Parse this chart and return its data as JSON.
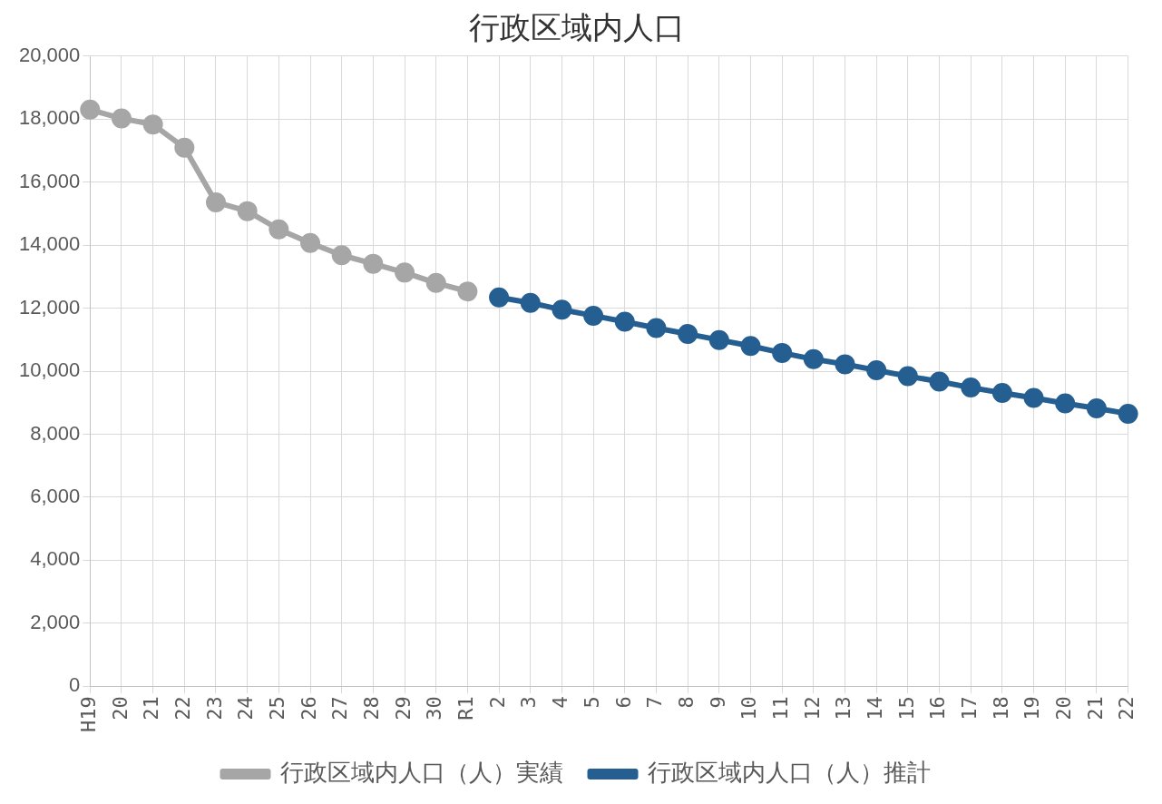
{
  "chart_data": {
    "type": "line",
    "title": "行政区域内人口",
    "categories": [
      "H19",
      "20",
      "21",
      "22",
      "23",
      "24",
      "25",
      "26",
      "27",
      "28",
      "29",
      "30",
      "R1",
      "2",
      "3",
      "4",
      "5",
      "6",
      "7",
      "8",
      "9",
      "10",
      "11",
      "12",
      "13",
      "14",
      "15",
      "16",
      "17",
      "18",
      "19",
      "20",
      "21",
      "22"
    ],
    "series": [
      {
        "name": "行政区域内人口（人）実績",
        "color": "#a6a6a6",
        "values": [
          18300,
          18020,
          17830,
          17090,
          15360,
          15080,
          14500,
          14070,
          13680,
          13410,
          13130,
          12800,
          12530,
          null,
          null,
          null,
          null,
          null,
          null,
          null,
          null,
          null,
          null,
          null,
          null,
          null,
          null,
          null,
          null,
          null,
          null,
          null,
          null,
          null
        ]
      },
      {
        "name": "行政区域内人口（人）推計",
        "color": "#255e91",
        "values": [
          null,
          null,
          null,
          null,
          null,
          null,
          null,
          null,
          null,
          null,
          null,
          null,
          null,
          12340,
          12170,
          11950,
          11760,
          11570,
          11370,
          11180,
          10990,
          10800,
          10580,
          10380,
          10220,
          10030,
          9840,
          9670,
          9480,
          9310,
          9150,
          8980,
          8820,
          8650
        ]
      }
    ],
    "ylim": [
      0,
      20000
    ],
    "yticks": [
      0,
      {
        "value": 2000,
        "label": "2,000"
      },
      {
        "value": 4000,
        "label": "4,000"
      },
      {
        "value": 6000,
        "label": "6,000"
      },
      {
        "value": 8000,
        "label": "8,000"
      },
      {
        "value": 10000,
        "label": "10,000"
      },
      {
        "value": 12000,
        "label": "12,000"
      },
      {
        "value": 14000,
        "label": "14,000"
      },
      {
        "value": 16000,
        "label": "16,000"
      },
      {
        "value": 18000,
        "label": "18,000"
      },
      {
        "value": 20000,
        "label": "20,000"
      }
    ],
    "grid": true,
    "legend": "bottom",
    "marker": "circle",
    "line_style": "solid"
  }
}
